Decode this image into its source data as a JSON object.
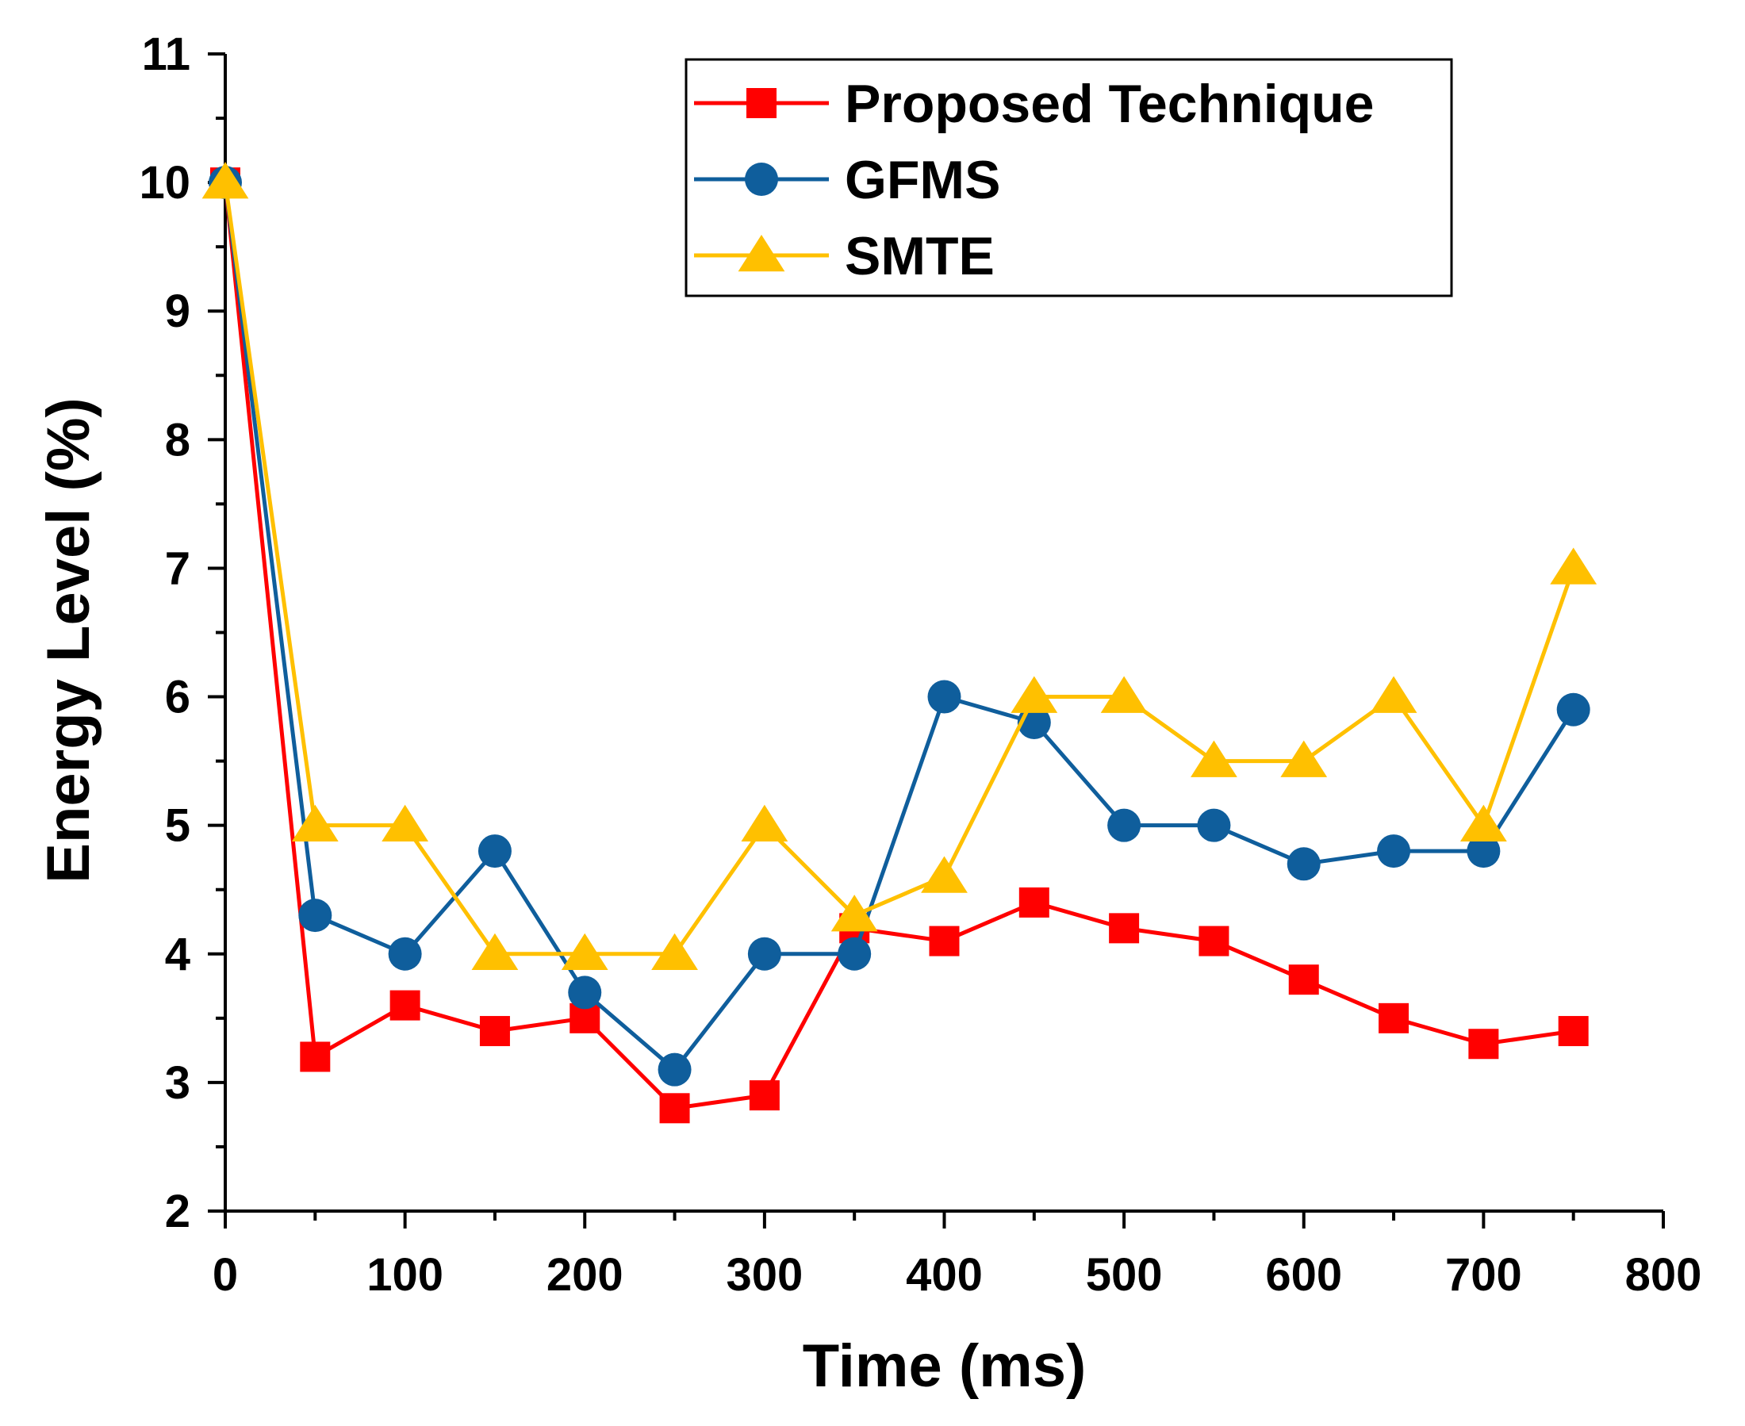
{
  "chart_data": {
    "type": "line",
    "title": "",
    "xlabel": "Time (ms)",
    "ylabel": "Energy Level (%)",
    "xlim": [
      0,
      800
    ],
    "ylim": [
      2,
      11
    ],
    "xticks": [
      0,
      100,
      200,
      300,
      400,
      500,
      600,
      700,
      800
    ],
    "yticks": [
      2,
      3,
      4,
      5,
      6,
      7,
      8,
      9,
      10,
      11
    ],
    "grid": false,
    "legend_position": "top-right",
    "x": [
      0,
      50,
      100,
      150,
      200,
      250,
      300,
      350,
      400,
      450,
      500,
      550,
      600,
      650,
      700,
      750
    ],
    "series": [
      {
        "name": "Proposed Technique",
        "color": "#FF0000",
        "marker": "square",
        "values": [
          10.0,
          3.2,
          3.6,
          3.4,
          3.5,
          2.8,
          2.9,
          4.2,
          4.1,
          4.4,
          4.2,
          4.1,
          3.8,
          3.5,
          3.3,
          3.4
        ]
      },
      {
        "name": "GFMS",
        "color": "#0F5E9C",
        "marker": "circle",
        "values": [
          10.0,
          4.3,
          4.0,
          4.8,
          3.7,
          3.1,
          4.0,
          4.0,
          6.0,
          5.8,
          5.0,
          5.0,
          4.7,
          4.8,
          4.8,
          5.9
        ]
      },
      {
        "name": "SMTE",
        "color": "#FFC000",
        "marker": "triangle",
        "values": [
          10.0,
          5.0,
          5.0,
          4.0,
          4.0,
          4.0,
          5.0,
          4.3,
          4.6,
          6.0,
          6.0,
          5.5,
          5.5,
          6.0,
          5.0,
          7.0
        ]
      }
    ]
  }
}
